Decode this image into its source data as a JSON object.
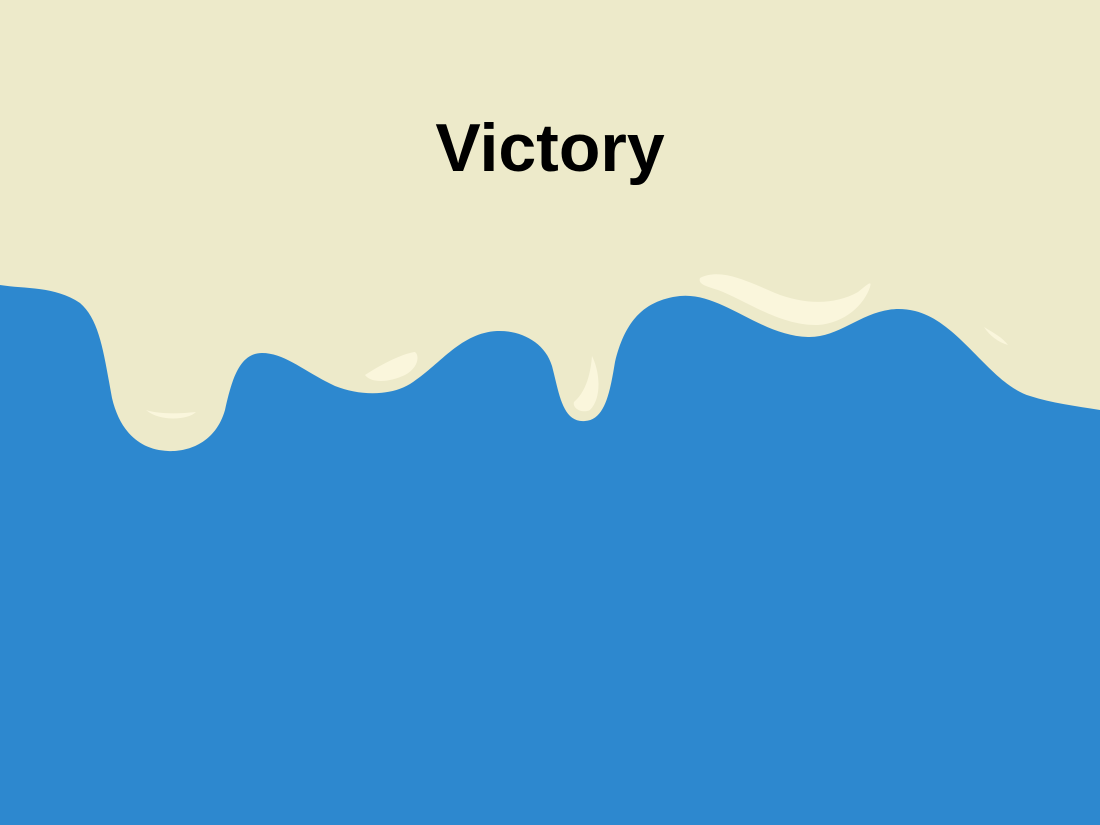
{
  "screen": {
    "title": "Victory"
  },
  "colors": {
    "drip": "#edeaca",
    "drip_highlight": "#faf6dc",
    "water": "#2d88cf",
    "title_text": "#000000"
  },
  "scene": {
    "background": "melting-cream-over-blue-water"
  }
}
